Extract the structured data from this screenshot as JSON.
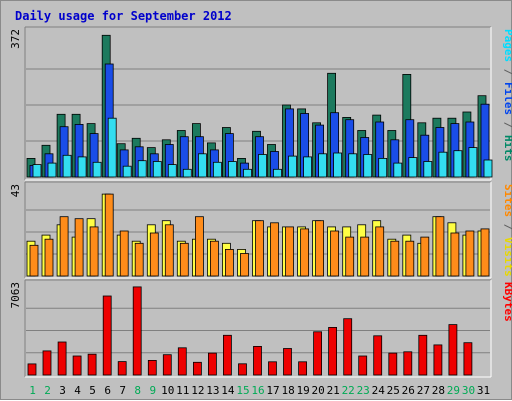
{
  "title": "Daily usage for September 2012",
  "chart_data": [
    {
      "type": "bar",
      "panel": "top",
      "legend_parts": [
        {
          "text": "Pages",
          "color": "#00ddff"
        },
        {
          "text": " / ",
          "color": "#606060"
        },
        {
          "text": "Files",
          "color": "#0044ee"
        },
        {
          "text": " / ",
          "color": "#606060"
        },
        {
          "text": "Hits",
          "color": "#008866"
        }
      ],
      "ymax_label": "372",
      "ylim": [
        0,
        372
      ],
      "categories": [
        "1",
        "2",
        "3",
        "4",
        "5",
        "6",
        "7",
        "8",
        "9",
        "10",
        "11",
        "12",
        "13",
        "14",
        "15",
        "16",
        "17",
        "18",
        "19",
        "20",
        "21",
        "22",
        "23",
        "24",
        "25",
        "26",
        "27",
        "28",
        "29",
        "30",
        "31"
      ],
      "weekend_days": [
        1,
        2,
        8,
        9,
        15,
        16,
        22,
        23,
        29,
        30
      ],
      "series": [
        {
          "name": "Hits",
          "color": "#1c7a5e",
          "values": [
            48,
            82,
            162,
            162,
            138,
            366,
            86,
            100,
            76,
            96,
            120,
            138,
            88,
            128,
            48,
            118,
            84,
            186,
            176,
            140,
            268,
            154,
            120,
            160,
            120,
            265,
            140,
            152,
            152,
            168,
            210
          ]
        },
        {
          "name": "Files",
          "color": "#1a4de8",
          "values": [
            30,
            60,
            130,
            136,
            112,
            292,
            70,
            78,
            60,
            84,
            104,
            104,
            70,
            112,
            36,
            104,
            66,
            176,
            164,
            134,
            166,
            148,
            102,
            142,
            96,
            148,
            108,
            128,
            138,
            142,
            188
          ]
        },
        {
          "name": "Pages",
          "color": "#33ddf0",
          "values": [
            32,
            36,
            56,
            52,
            38,
            152,
            28,
            42,
            40,
            32,
            20,
            60,
            38,
            40,
            20,
            58,
            20,
            54,
            52,
            60,
            62,
            60,
            58,
            48,
            36,
            50,
            40,
            64,
            68,
            76,
            44
          ]
        }
      ]
    },
    {
      "type": "bar",
      "panel": "middle",
      "legend_parts": [
        {
          "text": "Sites",
          "color": "#ff8800"
        },
        {
          "text": " / ",
          "color": "#606060"
        },
        {
          "text": "Visits",
          "color": "#e8d800"
        }
      ],
      "ymax_label": "43",
      "ylim": [
        0,
        43
      ],
      "categories": [
        "1",
        "2",
        "3",
        "4",
        "5",
        "6",
        "7",
        "8",
        "9",
        "10",
        "11",
        "12",
        "13",
        "14",
        "15",
        "16",
        "17",
        "18",
        "19",
        "20",
        "21",
        "22",
        "23",
        "24",
        "25",
        "26",
        "27",
        "28",
        "29",
        "30",
        "31"
      ],
      "series": [
        {
          "name": "Visits",
          "color": "#ffff44",
          "values": [
            17,
            20,
            25,
            19,
            28,
            40,
            20,
            17,
            25,
            27,
            17,
            18,
            18,
            16,
            13,
            27,
            24,
            24,
            24,
            27,
            24,
            24,
            25,
            27,
            18,
            20,
            16,
            29,
            26,
            20,
            22
          ]
        },
        {
          "name": "Sites",
          "color": "#ff8c1a",
          "values": [
            15,
            18,
            29,
            28,
            24,
            40,
            22,
            16,
            21,
            25,
            16,
            29,
            17,
            13,
            11,
            27,
            26,
            24,
            23,
            27,
            22,
            19,
            19,
            24,
            17,
            17,
            19,
            29,
            21,
            22,
            23
          ]
        }
      ]
    },
    {
      "type": "bar",
      "panel": "bottom",
      "legend_parts": [
        {
          "text": "KBytes",
          "color": "#ff0000"
        }
      ],
      "ymax_label": "7063",
      "ylim": [
        0,
        7063
      ],
      "categories": [
        "1",
        "2",
        "3",
        "4",
        "5",
        "6",
        "7",
        "8",
        "9",
        "10",
        "11",
        "12",
        "13",
        "14",
        "15",
        "16",
        "17",
        "18",
        "19",
        "20",
        "21",
        "22",
        "23",
        "24",
        "25",
        "26",
        "27",
        "28",
        "29",
        "30",
        "31"
      ],
      "series": [
        {
          "name": "KBytes",
          "color": "#ee0000",
          "values": [
            880,
            1910,
            2620,
            1510,
            1650,
            6270,
            1060,
            6990,
            1160,
            1610,
            2160,
            1010,
            1740,
            3150,
            890,
            2270,
            1050,
            2100,
            1050,
            3430,
            3780,
            4470,
            1510,
            3110,
            1740,
            1840,
            3150,
            2390,
            4000,
            2560,
            0
          ]
        }
      ]
    }
  ]
}
